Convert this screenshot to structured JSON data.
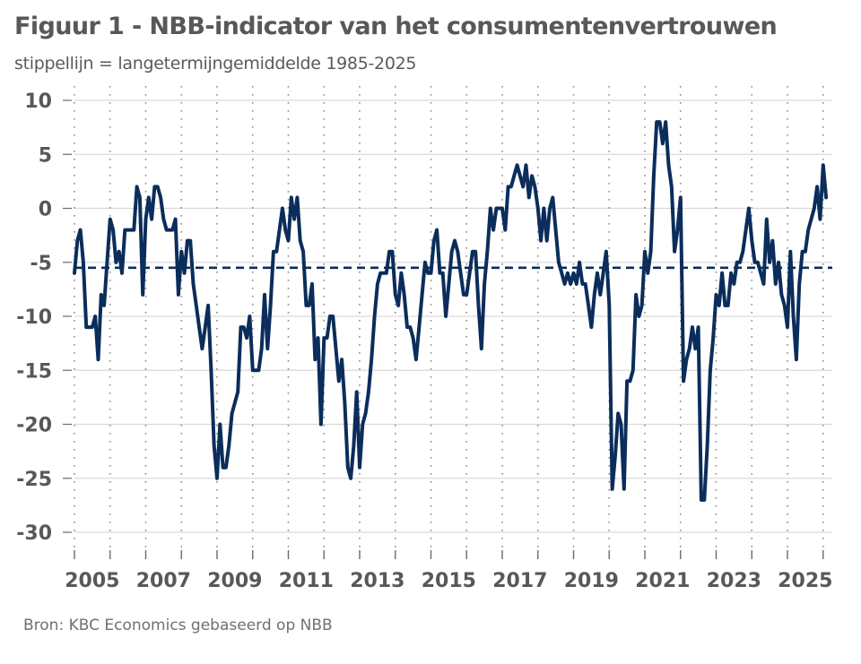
{
  "header": {
    "title": "Figuur 1 - NBB-indicator van het consumentenvertrouwen",
    "subtitle": "stippellijn = langetermijngemiddelde 1985-2025"
  },
  "footer": {
    "source": "Bron: KBC Economics gebaseerd op NBB"
  },
  "colors": {
    "series": "#0b2d5b",
    "average": "#0b2d5b",
    "grid": "#d9d9d9",
    "vgrid": "#8c8c8c",
    "text": "#585858"
  },
  "chart_data": {
    "type": "line",
    "title": "Figuur 1 - NBB-indicator van het consumentenvertrouwen",
    "subtitle": "stippellijn = langetermijngemiddelde 1985-2025",
    "xlabel": "",
    "ylabel": "",
    "frequency": "monthly",
    "start": "2005-01",
    "xlim": [
      2005,
      2026.17
    ],
    "ylim": [
      -30,
      10
    ],
    "yticks": [
      10,
      5,
      0,
      -5,
      -10,
      -15,
      -20,
      -25,
      -30
    ],
    "xtick_labels": [
      "2005",
      "2007",
      "2009",
      "2011",
      "2013",
      "2015",
      "2017",
      "2019",
      "2021",
      "2023",
      "2025"
    ],
    "xtick_label_years": [
      2005,
      2007,
      2009,
      2011,
      2013,
      2015,
      2017,
      2019,
      2021,
      2023,
      2025
    ],
    "vertical_gridlines": "yearly, dotted",
    "horizontal_gridlines": true,
    "legend": "none",
    "series": [
      {
        "name": "NBB-indicator consumentenvertrouwen",
        "style": "solid",
        "values": [
          -6,
          -3,
          -2,
          -5,
          -11,
          -11,
          -11,
          -10,
          -14,
          -8,
          -9,
          -5,
          -1,
          -2,
          -5,
          -4,
          -6,
          -2,
          -2,
          -2,
          -2,
          2,
          1,
          -8,
          -1,
          1,
          -1,
          2,
          2,
          1,
          -1,
          -2,
          -2,
          -2,
          -1,
          -8,
          -4,
          -6,
          -3,
          -3,
          -7,
          -9,
          -11,
          -13,
          -11,
          -9,
          -15,
          -22,
          -25,
          -20,
          -24,
          -24,
          -22,
          -19,
          -18,
          -17,
          -11,
          -11,
          -12,
          -10,
          -15,
          -15,
          -15,
          -13,
          -8,
          -13,
          -9,
          -4,
          -4,
          -2,
          0,
          -2,
          -3,
          1,
          -1,
          1,
          -3,
          -4,
          -9,
          -9,
          -7,
          -14,
          -12,
          -20,
          -12,
          -12,
          -10,
          -10,
          -13,
          -16,
          -14,
          -18,
          -24,
          -25,
          -22,
          -17,
          -24,
          -20,
          -19,
          -17,
          -14,
          -10,
          -7,
          -6,
          -6,
          -6,
          -4,
          -4,
          -8,
          -9,
          -6,
          -8,
          -11,
          -11,
          -12,
          -14,
          -11,
          -8,
          -5,
          -6,
          -6,
          -3,
          -2,
          -6,
          -6,
          -10,
          -7,
          -4,
          -3,
          -4,
          -6,
          -8,
          -8,
          -6,
          -4,
          -4,
          -9,
          -13,
          -7,
          -4,
          0,
          -2,
          0,
          0,
          0,
          -2,
          2,
          2,
          3,
          4,
          3,
          2,
          4,
          1,
          3,
          2,
          0,
          -3,
          0,
          -3,
          0,
          1,
          -2,
          -5,
          -6,
          -7,
          -6,
          -7,
          -6,
          -7,
          -5,
          -7,
          -7,
          -9,
          -11,
          -8,
          -6,
          -8,
          -6,
          -4,
          -9,
          -26,
          -23,
          -19,
          -20,
          -26,
          -16,
          -16,
          -15,
          -8,
          -10,
          -9,
          -4,
          -6,
          -4,
          3,
          8,
          8,
          6,
          8,
          4,
          2,
          -4,
          -2,
          1,
          -16,
          -14,
          -13,
          -11,
          -13,
          -11,
          -27,
          -27,
          -22,
          -15,
          -12,
          -8,
          -9,
          -6,
          -9,
          -9,
          -6,
          -7,
          -5,
          -5,
          -4,
          -2,
          0,
          -3,
          -5,
          -5,
          -6,
          -7,
          -1,
          -5,
          -3,
          -7,
          -5,
          -8,
          -9,
          -11,
          -4,
          -10,
          -14,
          -7,
          -4,
          -4,
          -2,
          -1,
          0,
          2,
          -1,
          4,
          1
        ]
      },
      {
        "name": "Langetermijngemiddelde 1985-2025",
        "style": "dashed",
        "value": -5.5
      }
    ]
  }
}
